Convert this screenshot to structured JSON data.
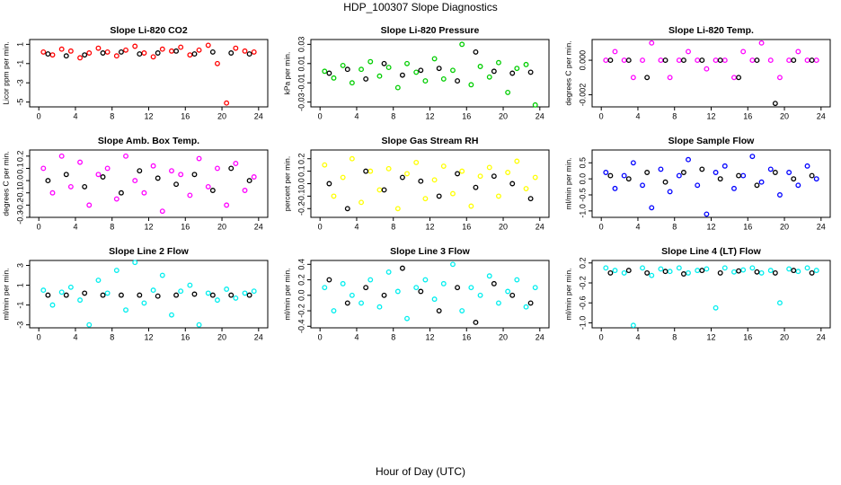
{
  "title": "HDP_100307  Slope Diagnostics",
  "xlabel": "Hour of Day (UTC)",
  "chart_data": [
    {
      "type": "scatter",
      "title": "Slope Li-820 CO2",
      "ylabel": "Licor ppm per min.",
      "xlim": [
        -1,
        25
      ],
      "xticks": [
        0,
        4,
        8,
        12,
        16,
        20,
        24
      ],
      "ylim": [
        -5.5,
        1.5
      ],
      "yticks": [
        -5,
        -3,
        -1,
        1
      ],
      "series": [
        {
          "color": "#ff0000",
          "x": [
            0.5,
            1.5,
            2.5,
            3.5,
            4.5,
            5.5,
            6.5,
            7.5,
            8.5,
            9.5,
            10.5,
            11.5,
            12.5,
            13.5,
            14.5,
            15.5,
            16.5,
            17.5,
            18.5,
            19.5,
            20.5,
            21.5,
            22.5,
            23.5
          ],
          "values": [
            0.2,
            -0.1,
            0.5,
            0.3,
            -0.4,
            0.1,
            0.6,
            0.2,
            -0.2,
            0.4,
            0.8,
            0.1,
            -0.3,
            0.5,
            0.3,
            0.7,
            -0.1,
            0.4,
            0.9,
            -1.0,
            -5.1,
            0.6,
            0.3,
            0.2
          ]
        },
        {
          "color": "#000000",
          "x": [
            1,
            3,
            5,
            7,
            9,
            11,
            13,
            15,
            17,
            19,
            21,
            23
          ],
          "values": [
            0,
            -0.2,
            -0.1,
            0.1,
            0.2,
            0,
            0.1,
            0.3,
            0,
            0.2,
            0.1,
            0
          ]
        }
      ]
    },
    {
      "type": "scatter",
      "title": "Slope Li-820 Pressure",
      "ylabel": "kPa per min.",
      "xlim": [
        -1,
        25
      ],
      "xticks": [
        0,
        4,
        8,
        12,
        16,
        20,
        24
      ],
      "ylim": [
        -0.035,
        0.035
      ],
      "yticks": [
        -0.03,
        -0.01,
        0.01,
        0.03
      ],
      "series": [
        {
          "color": "#00cd00",
          "x": [
            0.5,
            1.5,
            2.5,
            3.5,
            4.5,
            5.5,
            6.5,
            7.5,
            8.5,
            9.5,
            10.5,
            11.5,
            12.5,
            13.5,
            14.5,
            15.5,
            16.5,
            17.5,
            18.5,
            19.5,
            20.5,
            21.5,
            22.5,
            23.5
          ],
          "values": [
            0.002,
            -0.005,
            0.008,
            -0.01,
            0.004,
            0.012,
            -0.003,
            0.006,
            -0.015,
            0.01,
            0.001,
            -0.008,
            0.015,
            -0.006,
            0.003,
            0.03,
            -0.012,
            0.007,
            -0.004,
            0.011,
            -0.02,
            0.005,
            0.009,
            -0.033
          ]
        },
        {
          "color": "#000000",
          "x": [
            1,
            3,
            5,
            7,
            9,
            11,
            13,
            15,
            17,
            19,
            21,
            23
          ],
          "values": [
            0,
            0.004,
            -0.006,
            0.01,
            -0.002,
            0.003,
            0.005,
            -0.008,
            0.022,
            0.002,
            0,
            0.001
          ]
        }
      ]
    },
    {
      "type": "scatter",
      "title": "Slope Li-820 Temp.",
      "ylabel": "degrees C per min.",
      "xlim": [
        -1,
        25
      ],
      "xticks": [
        0,
        4,
        8,
        12,
        16,
        20,
        24
      ],
      "ylim": [
        -0.0027,
        0.0012
      ],
      "yticks": [
        {
          "value": -0.002,
          "label": "-0.002"
        },
        {
          "value": 0,
          "label": "0.000"
        }
      ],
      "series": [
        {
          "color": "#ff00ff",
          "x": [
            0.5,
            1.5,
            2.5,
            3.5,
            4.5,
            5.5,
            6.5,
            7.5,
            8.5,
            9.5,
            10.5,
            11.5,
            12.5,
            13.5,
            14.5,
            15.5,
            16.5,
            17.5,
            18.5,
            19.5,
            20.5,
            21.5,
            22.5,
            23.5
          ],
          "values": [
            0,
            0.0005,
            0,
            -0.001,
            0,
            0.001,
            0,
            -0.001,
            0,
            0.0005,
            0,
            -0.0005,
            0,
            0,
            -0.001,
            0.0005,
            0,
            0.001,
            0,
            -0.001,
            0,
            0.0005,
            0,
            0
          ]
        },
        {
          "color": "#000000",
          "x": [
            1,
            3,
            5,
            7,
            9,
            11,
            13,
            15,
            17,
            19,
            21,
            23
          ],
          "values": [
            0,
            0,
            -0.001,
            0,
            0,
            0,
            0,
            -0.001,
            0,
            -0.0025,
            0,
            0
          ]
        }
      ]
    },
    {
      "type": "scatter",
      "title": "Slope Amb. Box Temp.",
      "ylabel": "degrees C per min.",
      "xlim": [
        -1,
        25
      ],
      "xticks": [
        0,
        4,
        8,
        12,
        16,
        20,
        24
      ],
      "ylim": [
        -0.3,
        0.25
      ],
      "yticks": [
        -0.3,
        -0.2,
        -0.1,
        {
          "value": 0,
          "label": "0.0"
        },
        0.1,
        0.2
      ],
      "series": [
        {
          "color": "#ff00ff",
          "x": [
            0.5,
            1.5,
            2.5,
            3.5,
            4.5,
            5.5,
            6.5,
            7.5,
            8.5,
            9.5,
            10.5,
            11.5,
            12.5,
            13.5,
            14.5,
            15.5,
            16.5,
            17.5,
            18.5,
            19.5,
            20.5,
            21.5,
            22.5,
            23.5
          ],
          "values": [
            0.1,
            -0.1,
            0.2,
            -0.05,
            0.15,
            -0.2,
            0.05,
            0.1,
            -0.15,
            0.2,
            0,
            -0.1,
            0.12,
            -0.25,
            0.08,
            0.05,
            -0.12,
            0.18,
            -0.05,
            0.1,
            -0.2,
            0.14,
            -0.08,
            0.03
          ]
        },
        {
          "color": "#000000",
          "x": [
            1,
            3,
            5,
            7,
            9,
            11,
            13,
            15,
            17,
            19,
            21,
            23
          ],
          "values": [
            0,
            0.05,
            -0.05,
            0.03,
            -0.1,
            0.08,
            0.02,
            -0.03,
            0.05,
            -0.08,
            0.1,
            0
          ]
        }
      ]
    },
    {
      "type": "scatter",
      "title": "Slope Gas Stream RH",
      "ylabel": "percent per min.",
      "xlim": [
        -1,
        25
      ],
      "xticks": [
        0,
        4,
        8,
        12,
        16,
        20,
        24
      ],
      "ylim": [
        -0.27,
        0.27
      ],
      "yticks": [
        -0.2,
        -0.1,
        {
          "value": 0,
          "label": "0.0"
        },
        0.1,
        0.2
      ],
      "series": [
        {
          "color": "#ffff00",
          "x": [
            0.5,
            1.5,
            2.5,
            3.5,
            4.5,
            5.5,
            6.5,
            7.5,
            8.5,
            9.5,
            10.5,
            11.5,
            12.5,
            13.5,
            14.5,
            15.5,
            16.5,
            17.5,
            18.5,
            19.5,
            20.5,
            21.5,
            22.5,
            23.5
          ],
          "values": [
            0.15,
            -0.1,
            0.05,
            0.2,
            -0.15,
            0.1,
            -0.05,
            0.12,
            -0.2,
            0.08,
            0.17,
            -0.12,
            0.03,
            0.14,
            -0.08,
            0.1,
            -0.18,
            0.06,
            0.13,
            -0.1,
            0.09,
            0.18,
            -0.04,
            0.05
          ]
        },
        {
          "color": "#000000",
          "x": [
            1,
            3,
            5,
            7,
            9,
            11,
            13,
            15,
            17,
            19,
            21,
            23
          ],
          "values": [
            0,
            -0.2,
            0.1,
            -0.05,
            0.05,
            0.02,
            -0.1,
            0.08,
            -0.03,
            0.06,
            0,
            -0.12
          ]
        }
      ]
    },
    {
      "type": "scatter",
      "title": "Slope Sample Flow",
      "ylabel": "ml/min per min.",
      "xlim": [
        -1,
        25
      ],
      "xticks": [
        0,
        4,
        8,
        12,
        16,
        20,
        24
      ],
      "ylim": [
        -1.2,
        0.9
      ],
      "yticks": [
        {
          "value": -1,
          "label": "-1.0"
        },
        -0.5,
        {
          "value": 0,
          "label": "0.0"
        },
        0.5
      ],
      "series": [
        {
          "color": "#0000ff",
          "x": [
            0.5,
            1.5,
            2.5,
            3.5,
            4.5,
            5.5,
            6.5,
            7.5,
            8.5,
            9.5,
            10.5,
            11.5,
            12.5,
            13.5,
            14.5,
            15.5,
            16.5,
            17.5,
            18.5,
            19.5,
            20.5,
            21.5,
            22.5,
            23.5
          ],
          "values": [
            0.2,
            -0.3,
            0.1,
            0.5,
            -0.2,
            -0.9,
            0.3,
            -0.4,
            0.1,
            0.6,
            -0.2,
            -1.1,
            0.2,
            0.4,
            -0.3,
            0.1,
            0.7,
            -0.1,
            0.3,
            -0.5,
            0.2,
            -0.2,
            0.4,
            0
          ]
        },
        {
          "color": "#000000",
          "x": [
            1,
            3,
            5,
            7,
            9,
            11,
            13,
            15,
            17,
            19,
            21,
            23
          ],
          "values": [
            0.1,
            0,
            0.2,
            -0.1,
            0.2,
            0.3,
            0,
            0.1,
            -0.2,
            0.2,
            0,
            0.1
          ]
        }
      ]
    },
    {
      "type": "scatter",
      "title": "Slope Line 2 Flow",
      "ylabel": "ml/min per min.",
      "xlim": [
        -1,
        25
      ],
      "xticks": [
        0,
        4,
        8,
        12,
        16,
        20,
        24
      ],
      "ylim": [
        -3.3,
        3.5
      ],
      "yticks": [
        -3,
        -1,
        1,
        3
      ],
      "series": [
        {
          "color": "#00eeee",
          "x": [
            0.5,
            1.5,
            2.5,
            3.5,
            4.5,
            5.5,
            6.5,
            7.5,
            8.5,
            9.5,
            10.5,
            11.5,
            12.5,
            13.5,
            14.5,
            15.5,
            16.5,
            17.5,
            18.5,
            19.5,
            20.5,
            21.5,
            22.5,
            23.5
          ],
          "values": [
            0.5,
            -1,
            0.3,
            0.8,
            -0.5,
            -3,
            1.5,
            0.2,
            2.5,
            -1.5,
            3.3,
            -0.8,
            0.5,
            2,
            -2,
            0.4,
            1,
            -3,
            0.2,
            -0.5,
            0.6,
            -0.3,
            0.2,
            0.4
          ]
        },
        {
          "color": "#000000",
          "x": [
            1,
            3,
            5,
            7,
            9,
            11,
            13,
            15,
            17,
            19,
            21,
            23
          ],
          "values": [
            0,
            0,
            0.2,
            0,
            0,
            0,
            -0.1,
            0,
            0.1,
            0,
            0,
            0
          ]
        }
      ]
    },
    {
      "type": "scatter",
      "title": "Slope Line 3 Flow",
      "ylabel": "ml/min per min.",
      "xlim": [
        -1,
        25
      ],
      "xticks": [
        0,
        4,
        8,
        12,
        16,
        20,
        24
      ],
      "ylim": [
        -0.42,
        0.45
      ],
      "yticks": [
        -0.4,
        -0.2,
        {
          "value": 0,
          "label": "0.0"
        },
        0.2,
        0.4
      ],
      "series": [
        {
          "color": "#00eeee",
          "x": [
            0.5,
            1.5,
            2.5,
            3.5,
            4.5,
            5.5,
            6.5,
            7.5,
            8.5,
            9.5,
            10.5,
            11.5,
            12.5,
            13.5,
            14.5,
            15.5,
            16.5,
            17.5,
            18.5,
            19.5,
            20.5,
            21.5,
            22.5,
            23.5
          ],
          "values": [
            0.1,
            -0.2,
            0.15,
            0,
            -0.1,
            0.2,
            -0.15,
            0.3,
            0.05,
            -0.3,
            0.1,
            0.2,
            -0.05,
            0.15,
            0.4,
            -0.2,
            0.1,
            0,
            0.25,
            -0.1,
            0.05,
            0.2,
            -0.15,
            0.1
          ]
        },
        {
          "color": "#000000",
          "x": [
            1,
            3,
            5,
            7,
            9,
            11,
            13,
            15,
            17,
            19,
            21,
            23
          ],
          "values": [
            0.2,
            -0.1,
            0.1,
            0,
            0.35,
            0.05,
            -0.2,
            0.1,
            -0.35,
            0.15,
            0,
            -0.1
          ]
        }
      ]
    },
    {
      "type": "scatter",
      "title": "Slope Line 4 (LT) Flow",
      "ylabel": "ml/min per min.",
      "xlim": [
        -1,
        25
      ],
      "xticks": [
        0,
        4,
        8,
        12,
        16,
        20,
        24
      ],
      "ylim": [
        -1.1,
        0.25
      ],
      "yticks": [
        {
          "value": -1,
          "label": "-1.0"
        },
        -0.6,
        -0.2,
        0.2
      ],
      "series": [
        {
          "color": "#00eeee",
          "x": [
            0.5,
            1.5,
            2.5,
            3.5,
            4.5,
            5.5,
            6.5,
            7.5,
            8.5,
            9.5,
            10.5,
            11.5,
            12.5,
            13.5,
            14.5,
            15.5,
            16.5,
            17.5,
            18.5,
            19.5,
            20.5,
            21.5,
            22.5,
            23.5
          ],
          "values": [
            0.1,
            0.05,
            0,
            -1.05,
            0.1,
            -0.05,
            0.08,
            0.03,
            0.1,
            0,
            0.05,
            0.08,
            -0.7,
            0.1,
            0.02,
            0.06,
            0.1,
            0,
            0.05,
            -0.6,
            0.08,
            0.03,
            0.1,
            0.05
          ]
        },
        {
          "color": "#000000",
          "x": [
            1,
            3,
            5,
            7,
            9,
            11,
            13,
            15,
            17,
            19,
            21,
            23
          ],
          "values": [
            0,
            0.05,
            0,
            0.03,
            -0.02,
            0.05,
            0,
            0.04,
            0.02,
            0,
            0.05,
            0
          ]
        }
      ]
    }
  ]
}
